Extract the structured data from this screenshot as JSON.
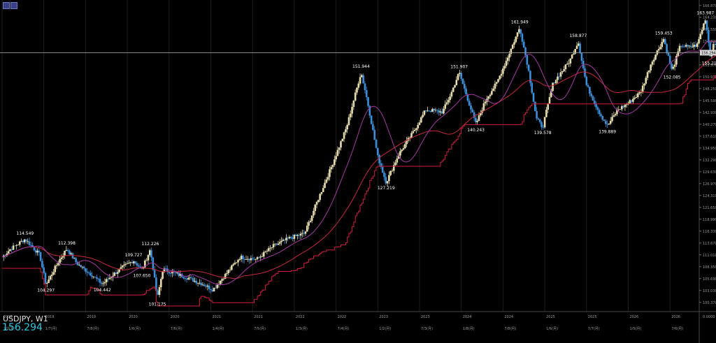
{
  "colors": {
    "background": "#000000",
    "grid": "#1e1e1e",
    "bull": "#e6dcae",
    "bear": "#3b8fd8",
    "ma_fast": "#a33aa3",
    "ma_slow": "#c8283c",
    "step": "#cc1e3c",
    "axis_text": "#9a9a9a",
    "label_text": "#ffffff",
    "price_line": "#9a9a9a",
    "symbol_price": "#2ec7e0"
  },
  "toolbar": {
    "icons": [
      "chart-settings-icon",
      "chart-toggle-icon"
    ]
  },
  "symbol": {
    "name": "USDJPY, W1",
    "current_price": "156.294"
  },
  "chart_data": {
    "type": "candlestick",
    "symbol": "USDJPY",
    "timeframe": "W1",
    "y_ticks": [
      "166.870",
      "164.230",
      "161.550",
      "158.890",
      "156.294",
      "153.570",
      "150.910",
      "148.250",
      "145.590",
      "142.930",
      "140.270",
      "137.610",
      "134.950",
      "132.290",
      "129.630",
      "126.970",
      "124.310",
      "121.650",
      "118.990",
      "116.330",
      "113.670",
      "111.010",
      "108.350",
      "105.690",
      "103.030",
      "100.370"
    ],
    "y_axis_bottom": "0.0000",
    "ylim": [
      98.3,
      168.1
    ],
    "x_ticks_year": [
      {
        "label": "2018",
        "t": 0.0
      },
      {
        "label": "2019",
        "t": 1.0
      },
      {
        "label": "2019",
        "t": 2.0
      },
      {
        "label": "2020",
        "t": 3.0
      },
      {
        "label": "2020",
        "t": 4.0
      },
      {
        "label": "2021",
        "t": 5.0
      },
      {
        "label": "2021",
        "t": 6.0
      },
      {
        "label": "2022",
        "t": 7.0
      },
      {
        "label": "2022",
        "t": 8.0
      },
      {
        "label": "2023",
        "t": 9.0
      },
      {
        "label": "2023",
        "t": 10.0
      },
      {
        "label": "2024",
        "t": 11.0
      },
      {
        "label": "2024",
        "t": 12.0
      },
      {
        "label": "2025",
        "t": 13.0
      },
      {
        "label": "2025",
        "t": 14.0
      },
      {
        "label": "2026",
        "t": 15.0
      },
      {
        "label": "2026",
        "t": 16.0
      }
    ],
    "x_ticks_date": [
      {
        "label": "7/2(月)",
        "t": 0.0
      },
      {
        "label": "1/7(月)",
        "t": 1.0
      },
      {
        "label": "7/8(月)",
        "t": 2.0
      },
      {
        "label": "1/6(月)",
        "t": 3.0
      },
      {
        "label": "7/6(月)",
        "t": 4.0
      },
      {
        "label": "1/4(月)",
        "t": 5.0
      },
      {
        "label": "7/5(月)",
        "t": 6.0
      },
      {
        "label": "1/3(月)",
        "t": 7.0
      },
      {
        "label": "7/4(月)",
        "t": 8.0
      },
      {
        "label": "1/2(月)",
        "t": 9.0
      },
      {
        "label": "7/3(月)",
        "t": 10.0
      },
      {
        "label": "1/8(月)",
        "t": 11.0
      },
      {
        "label": "7/8(月)",
        "t": 12.0
      },
      {
        "label": "1/6(月)",
        "t": 13.0
      },
      {
        "label": "7/7(月)",
        "t": 14.0
      },
      {
        "label": "1/5(月)",
        "t": 15.0
      },
      {
        "label": "7/6(月)",
        "t": 16.0
      }
    ],
    "t_range": [
      -0.05,
      16.7
    ],
    "price_anchors": [
      [
        0.0,
        110.5
      ],
      [
        0.2,
        112.3
      ],
      [
        0.55,
        114.549
      ],
      [
        0.9,
        111.0
      ],
      [
        1.05,
        104.297
      ],
      [
        1.35,
        109.5
      ],
      [
        1.55,
        112.398
      ],
      [
        1.8,
        109.0
      ],
      [
        2.15,
        106.5
      ],
      [
        2.4,
        104.442
      ],
      [
        2.65,
        106.5
      ],
      [
        2.9,
        108.3
      ],
      [
        3.15,
        109.727
      ],
      [
        3.35,
        107.65
      ],
      [
        3.55,
        112.226
      ],
      [
        3.72,
        101.175
      ],
      [
        3.85,
        107.8
      ],
      [
        4.1,
        107.0
      ],
      [
        4.4,
        106.0
      ],
      [
        4.8,
        104.5
      ],
      [
        5.05,
        103.2
      ],
      [
        5.3,
        106.0
      ],
      [
        5.7,
        110.5
      ],
      [
        6.1,
        110.0
      ],
      [
        6.5,
        113.0
      ],
      [
        6.9,
        114.8
      ],
      [
        7.25,
        115.8
      ],
      [
        7.55,
        123.0
      ],
      [
        7.9,
        131.0
      ],
      [
        8.25,
        139.5
      ],
      [
        8.6,
        151.944
      ],
      [
        8.75,
        145.5
      ],
      [
        9.0,
        133.0
      ],
      [
        9.2,
        127.219
      ],
      [
        9.5,
        133.5
      ],
      [
        9.85,
        138.5
      ],
      [
        10.15,
        143.5
      ],
      [
        10.55,
        143.0
      ],
      [
        10.75,
        147.0
      ],
      [
        10.95,
        151.907
      ],
      [
        11.15,
        146.0
      ],
      [
        11.35,
        140.243
      ],
      [
        11.6,
        146.0
      ],
      [
        11.85,
        149.5
      ],
      [
        12.1,
        155.0
      ],
      [
        12.4,
        161.949
      ],
      [
        12.6,
        153.0
      ],
      [
        12.8,
        141.5
      ],
      [
        12.95,
        139.578
      ],
      [
        13.2,
        149.5
      ],
      [
        13.4,
        152.0
      ],
      [
        13.6,
        154.5
      ],
      [
        13.8,
        158.877
      ],
      [
        14.0,
        149.0
      ],
      [
        14.3,
        143.0
      ],
      [
        14.5,
        139.889
      ],
      [
        14.75,
        143.5
      ],
      [
        15.0,
        145.0
      ],
      [
        15.3,
        147.5
      ],
      [
        15.55,
        154.0
      ],
      [
        15.85,
        159.453
      ],
      [
        16.05,
        152.085
      ],
      [
        16.25,
        158.0
      ],
      [
        16.45,
        157.5
      ],
      [
        16.65,
        158.0
      ],
      [
        16.85,
        163.987
      ],
      [
        16.97,
        155.217
      ],
      [
        17.05,
        159.0
      ],
      [
        17.2,
        156.294
      ]
    ],
    "annotations": [
      {
        "text": "114.549",
        "t": 0.55,
        "price": 114.549,
        "pos": "above"
      },
      {
        "text": "104.297",
        "t": 1.05,
        "price": 104.297,
        "pos": "below"
      },
      {
        "text": "112.398",
        "t": 1.55,
        "price": 112.398,
        "pos": "above"
      },
      {
        "text": "104.442",
        "t": 2.4,
        "price": 104.442,
        "pos": "below"
      },
      {
        "text": "109.727",
        "t": 3.15,
        "price": 109.727,
        "pos": "above"
      },
      {
        "text": "107.650",
        "t": 3.35,
        "price": 107.65,
        "pos": "below"
      },
      {
        "text": "112.226",
        "t": 3.55,
        "price": 112.226,
        "pos": "above"
      },
      {
        "text": "101.175",
        "t": 3.72,
        "price": 101.175,
        "pos": "below"
      },
      {
        "text": "151.944",
        "t": 8.6,
        "price": 151.944,
        "pos": "above"
      },
      {
        "text": "127.219",
        "t": 9.2,
        "price": 127.219,
        "pos": "below"
      },
      {
        "text": "151.907",
        "t": 10.95,
        "price": 151.907,
        "pos": "above"
      },
      {
        "text": "140.243",
        "t": 11.35,
        "price": 140.243,
        "pos": "below"
      },
      {
        "text": "161.949",
        "t": 12.4,
        "price": 161.949,
        "pos": "above"
      },
      {
        "text": "139.578",
        "t": 12.95,
        "price": 139.578,
        "pos": "below"
      },
      {
        "text": "158.877",
        "t": 13.8,
        "price": 158.877,
        "pos": "above"
      },
      {
        "text": "139.889",
        "t": 14.5,
        "price": 139.889,
        "pos": "below"
      },
      {
        "text": "159.453",
        "t": 15.85,
        "price": 159.453,
        "pos": "above"
      },
      {
        "text": "152.085",
        "t": 16.05,
        "price": 152.085,
        "pos": "below"
      },
      {
        "text": "163.987",
        "t": 16.85,
        "price": 163.987,
        "pos": "above"
      },
      {
        "text": "155.217",
        "t": 16.97,
        "price": 155.217,
        "pos": "below"
      }
    ],
    "current_price": 156.294,
    "grid": true
  }
}
